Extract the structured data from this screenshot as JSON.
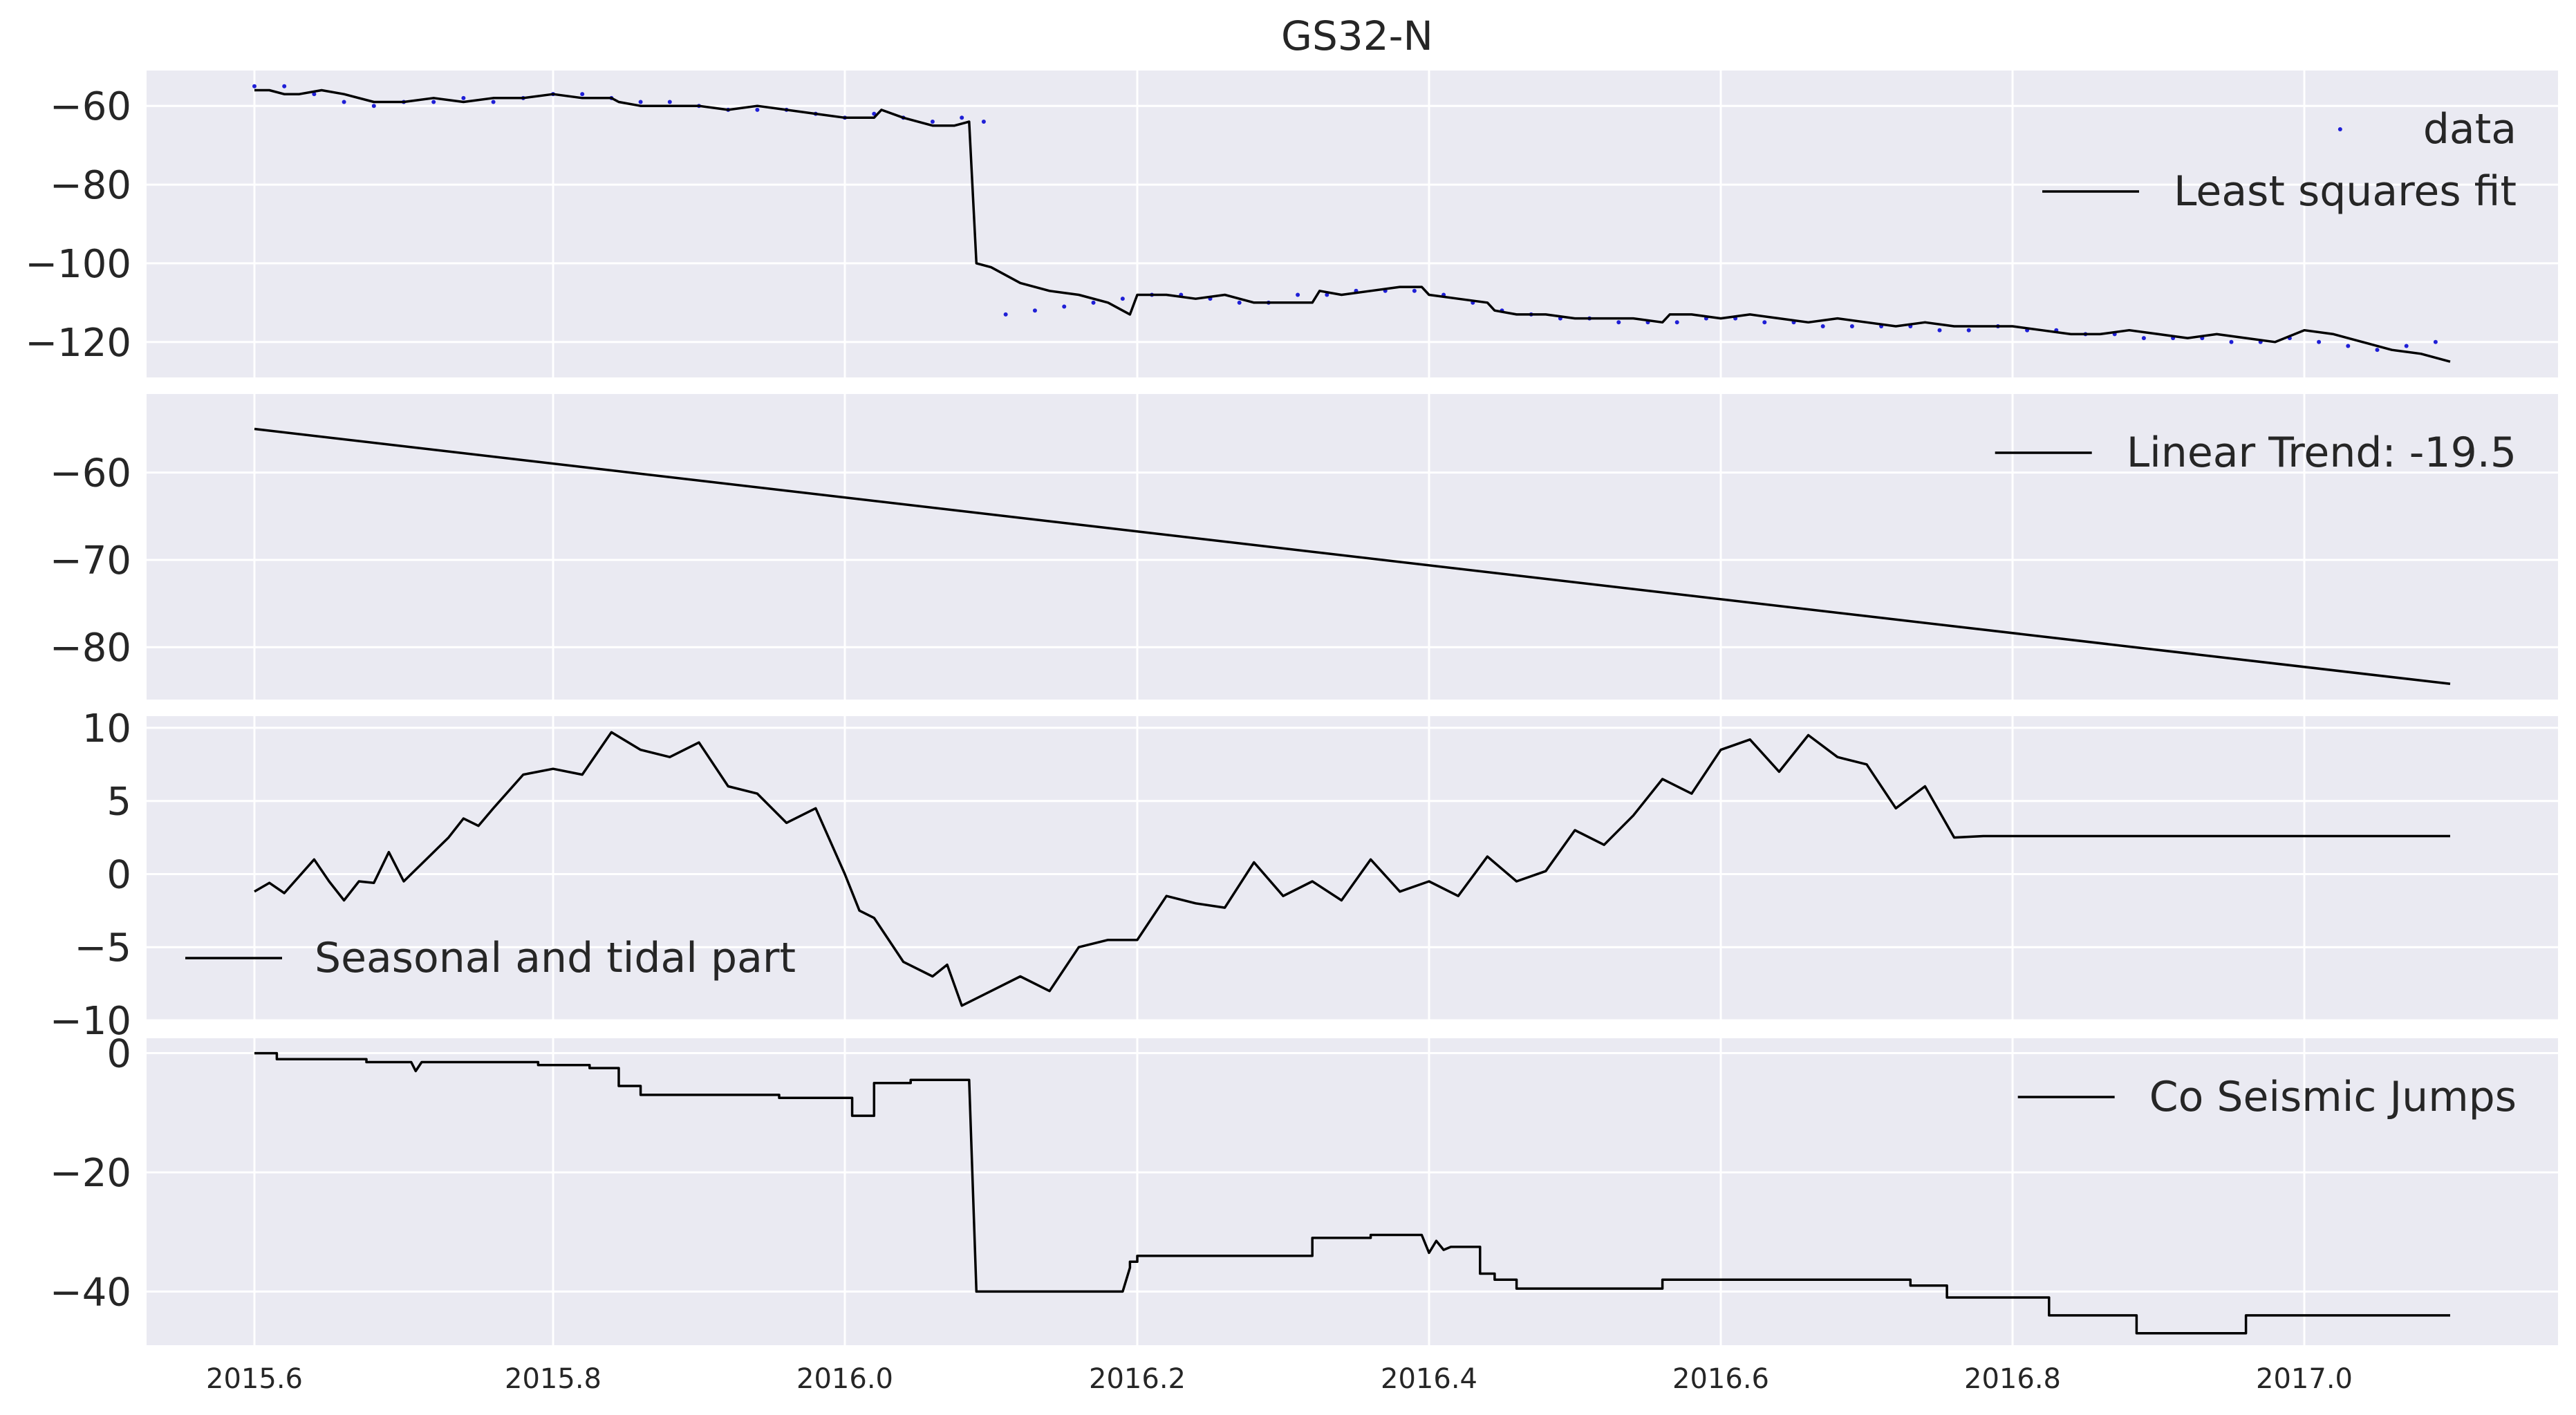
{
  "title": "GS32-N",
  "x_ticks": [
    "2015.6",
    "2015.8",
    "2016.0",
    "2016.2",
    "2016.4",
    "2016.6",
    "2016.8",
    "2017.0"
  ],
  "chart_data": [
    {
      "type": "scatter+line",
      "legend": [
        "data",
        "Least squares fit"
      ],
      "legend_placement": "top-right",
      "y_ticks": [
        "−60",
        "−80",
        "−100",
        "−120"
      ],
      "ylim": [
        -129,
        -51
      ],
      "xlim": [
        2015.524,
        2017.157
      ],
      "grid": true,
      "series": [
        {
          "name": "data",
          "style": "points",
          "x": [
            2015.6,
            2015.62,
            2015.64,
            2015.66,
            2015.68,
            2015.7,
            2015.72,
            2015.74,
            2015.76,
            2015.78,
            2015.8,
            2015.82,
            2015.84,
            2015.86,
            2015.88,
            2015.9,
            2015.92,
            2015.94,
            2015.96,
            2015.98,
            2016.0,
            2016.02,
            2016.04,
            2016.06,
            2016.08,
            2016.095,
            2016.11,
            2016.13,
            2016.15,
            2016.17,
            2016.19,
            2016.21,
            2016.23,
            2016.25,
            2016.27,
            2016.29,
            2016.31,
            2016.33,
            2016.35,
            2016.37,
            2016.39,
            2016.41,
            2016.43,
            2016.45,
            2016.47,
            2016.49,
            2016.51,
            2016.53,
            2016.55,
            2016.57,
            2016.59,
            2016.61,
            2016.63,
            2016.65,
            2016.67,
            2016.69,
            2016.71,
            2016.73,
            2016.75,
            2016.77,
            2016.79,
            2016.81,
            2016.83,
            2016.85,
            2016.87,
            2016.89,
            2016.91,
            2016.93,
            2016.95,
            2016.97,
            2016.99,
            2017.01,
            2017.03,
            2017.05,
            2017.07,
            2017.09
          ],
          "y": [
            -55,
            -55,
            -57,
            -59,
            -60,
            -59,
            -59,
            -58,
            -59,
            -58,
            -57,
            -57,
            -58,
            -59,
            -59,
            -60,
            -61,
            -61,
            -61,
            -62,
            -63,
            -62,
            -63,
            -64,
            -63,
            -64,
            -113,
            -112,
            -111,
            -110,
            -109,
            -108,
            -108,
            -109,
            -110,
            -110,
            -108,
            -108,
            -107,
            -107,
            -107,
            -108,
            -110,
            -112,
            -113,
            -114,
            -114,
            -115,
            -115,
            -115,
            -114,
            -114,
            -115,
            -115,
            -116,
            -116,
            -116,
            -116,
            -117,
            -117,
            -116,
            -117,
            -117,
            -118,
            -118,
            -119,
            -119,
            -119,
            -120,
            -120,
            -119,
            -120,
            -121,
            -122,
            -121,
            -120
          ]
        },
        {
          "name": "Least squares fit",
          "style": "line",
          "x": [
            2015.6,
            2015.61,
            2015.62,
            2015.63,
            2015.645,
            2015.66,
            2015.68,
            2015.7,
            2015.72,
            2015.74,
            2015.76,
            2015.78,
            2015.8,
            2015.82,
            2015.84,
            2015.845,
            2015.86,
            2015.88,
            2015.9,
            2015.92,
            2015.94,
            2015.96,
            2015.98,
            2016.0,
            2016.02,
            2016.025,
            2016.04,
            2016.06,
            2016.075,
            2016.085,
            2016.09,
            2016.1,
            2016.12,
            2016.14,
            2016.16,
            2016.18,
            2016.195,
            2016.2,
            2016.22,
            2016.24,
            2016.26,
            2016.28,
            2016.3,
            2016.32,
            2016.325,
            2016.34,
            2016.36,
            2016.38,
            2016.395,
            2016.4,
            2016.42,
            2016.44,
            2016.445,
            2016.46,
            2016.48,
            2016.5,
            2016.52,
            2016.54,
            2016.56,
            2016.565,
            2016.58,
            2016.6,
            2016.62,
            2016.64,
            2016.66,
            2016.68,
            2016.7,
            2016.72,
            2016.74,
            2016.76,
            2016.78,
            2016.8,
            2016.82,
            2016.84,
            2016.86,
            2016.88,
            2016.9,
            2016.92,
            2016.94,
            2016.96,
            2016.98,
            2017.0,
            2017.02,
            2017.04,
            2017.06,
            2017.08,
            2017.1
          ],
          "y": [
            -56,
            -56,
            -57,
            -57,
            -56,
            -57,
            -59,
            -59,
            -58,
            -59,
            -58,
            -58,
            -57,
            -58,
            -58,
            -59,
            -60,
            -60,
            -60,
            -61,
            -60,
            -61,
            -62,
            -63,
            -63,
            -61,
            -63,
            -65,
            -65,
            -64,
            -100,
            -101,
            -105,
            -107,
            -108,
            -110,
            -113,
            -108,
            -108,
            -109,
            -108,
            -110,
            -110,
            -110,
            -107,
            -108,
            -107,
            -106,
            -106,
            -108,
            -109,
            -110,
            -112,
            -113,
            -113,
            -114,
            -114,
            -114,
            -115,
            -113,
            -113,
            -114,
            -113,
            -114,
            -115,
            -114,
            -115,
            -116,
            -115,
            -116,
            -116,
            -116,
            -117,
            -118,
            -118,
            -117,
            -118,
            -119,
            -118,
            -119,
            -120,
            -117,
            -118,
            -120,
            -122,
            -123,
            -125
          ]
        }
      ]
    },
    {
      "type": "line",
      "legend": [
        "Linear Trend: -19.5"
      ],
      "legend_placement": "top-right",
      "y_ticks": [
        "−60",
        "−70",
        "−80"
      ],
      "ylim": [
        -86,
        -51
      ],
      "xlim": [
        2015.524,
        2017.157
      ],
      "grid": true,
      "series": [
        {
          "name": "Linear Trend: -19.5",
          "x": [
            2015.6,
            2017.1
          ],
          "y": [
            -55.0,
            -84.2
          ]
        }
      ]
    },
    {
      "type": "line",
      "legend": [
        "Seasonal and tidal part"
      ],
      "legend_placement": "lower-left",
      "y_ticks": [
        "10",
        "5",
        "0",
        "−5",
        "−10"
      ],
      "ylim": [
        -10,
        10.8
      ],
      "xlim": [
        2015.524,
        2017.157
      ],
      "grid": true,
      "series": [
        {
          "name": "Seasonal and tidal part",
          "x": [
            2015.6,
            2015.61,
            2015.62,
            2015.64,
            2015.65,
            2015.66,
            2015.67,
            2015.68,
            2015.69,
            2015.7,
            2015.72,
            2015.73,
            2015.74,
            2015.75,
            2015.76,
            2015.78,
            2015.8,
            2015.82,
            2015.84,
            2015.86,
            2015.88,
            2015.9,
            2015.92,
            2015.94,
            2015.96,
            2015.98,
            2016.0,
            2016.01,
            2016.02,
            2016.04,
            2016.06,
            2016.07,
            2016.08,
            2016.1,
            2016.12,
            2016.14,
            2016.16,
            2016.18,
            2016.2,
            2016.22,
            2016.24,
            2016.26,
            2016.28,
            2016.3,
            2016.32,
            2016.34,
            2016.36,
            2016.38,
            2016.4,
            2016.42,
            2016.44,
            2016.46,
            2016.48,
            2016.5,
            2016.52,
            2016.54,
            2016.56,
            2016.58,
            2016.6,
            2016.62,
            2016.64,
            2016.66,
            2016.68,
            2016.7,
            2016.72,
            2016.74,
            2016.76,
            2016.78,
            2016.8,
            2016.82,
            2016.84,
            2016.86,
            2016.88,
            2016.9,
            2016.92,
            2016.94,
            2016.96,
            2016.98,
            2017.0,
            2017.02,
            2017.04,
            2017.06,
            2017.08,
            2017.1
          ],
          "y": [
            -1.2,
            -0.6,
            -1.3,
            1.0,
            -0.5,
            -1.8,
            -0.5,
            -0.6,
            1.5,
            -0.5,
            1.5,
            2.5,
            3.8,
            3.3,
            4.5,
            6.8,
            7.2,
            6.8,
            9.7,
            8.5,
            8.0,
            9.0,
            6.0,
            5.5,
            3.5,
            4.5,
            0.0,
            -2.5,
            -3.0,
            -6.0,
            -7.0,
            -6.2,
            -9.0,
            -8.0,
            -7.0,
            -8.0,
            -5.0,
            -4.5,
            -4.5,
            -1.5,
            -2.0,
            -2.3,
            0.8,
            -1.5,
            -0.5,
            -1.8,
            1.0,
            -1.2,
            -0.5,
            -1.5,
            1.2,
            -0.5,
            0.2,
            3.0,
            2.0,
            4.0,
            6.5,
            5.5,
            8.5,
            9.2,
            7.0,
            9.5,
            8.0,
            7.5,
            4.5,
            6.0,
            2.5,
            2.6,
            2.6,
            2.6,
            2.6,
            2.6,
            2.6,
            2.6,
            2.6,
            2.6,
            2.6,
            2.6,
            2.6,
            2.6,
            2.6,
            2.6,
            2.6,
            2.6
          ]
        }
      ]
    },
    {
      "type": "line",
      "legend": [
        "Co Seismic Jumps"
      ],
      "legend_placement": "top-right",
      "y_ticks": [
        "0",
        "−20",
        "−40"
      ],
      "ylim": [
        -49,
        2.5
      ],
      "xlim": [
        2015.524,
        2017.157
      ],
      "grid": true,
      "series": [
        {
          "name": "Co Seismic Jumps",
          "x": [
            2015.6,
            2015.615,
            2015.615,
            2015.675,
            2015.675,
            2015.705,
            2015.708,
            2015.712,
            2015.712,
            2015.79,
            2015.79,
            2015.825,
            2015.825,
            2015.845,
            2015.845,
            2015.86,
            2015.86,
            2015.955,
            2015.955,
            2016.005,
            2016.005,
            2016.02,
            2016.02,
            2016.045,
            2016.045,
            2016.085,
            2016.09,
            2016.19,
            2016.195,
            2016.195,
            2016.2,
            2016.2,
            2016.315,
            2016.32,
            2016.32,
            2016.36,
            2016.36,
            2016.395,
            2016.4,
            2016.405,
            2016.41,
            2016.415,
            2016.42,
            2016.435,
            2016.435,
            2016.445,
            2016.445,
            2016.46,
            2016.46,
            2016.47,
            2016.47,
            2016.56,
            2016.56,
            2016.73,
            2016.73,
            2016.755,
            2016.755,
            2016.825,
            2016.825,
            2016.885,
            2016.885,
            2016.96,
            2016.96,
            2017.1
          ],
          "y": [
            0,
            0,
            -1,
            -1,
            -1.5,
            -1.5,
            -3,
            -1.5,
            -1.5,
            -1.5,
            -2,
            -2,
            -2.5,
            -2.5,
            -5.5,
            -5.5,
            -7,
            -7,
            -7.5,
            -7.5,
            -10.5,
            -10.5,
            -5,
            -5,
            -4.5,
            -4.5,
            -40,
            -40,
            -36,
            -35,
            -35,
            -34,
            -34,
            -34,
            -31,
            -31,
            -30.5,
            -30.5,
            -33.5,
            -31.5,
            -33,
            -32.5,
            -32.5,
            -32.5,
            -37,
            -37,
            -38,
            -38,
            -39.5,
            -39.5,
            -39.5,
            -39.5,
            -38,
            -38,
            -39,
            -39,
            -41,
            -41,
            -44,
            -44,
            -47,
            -47,
            -44,
            -44
          ]
        }
      ]
    }
  ]
}
